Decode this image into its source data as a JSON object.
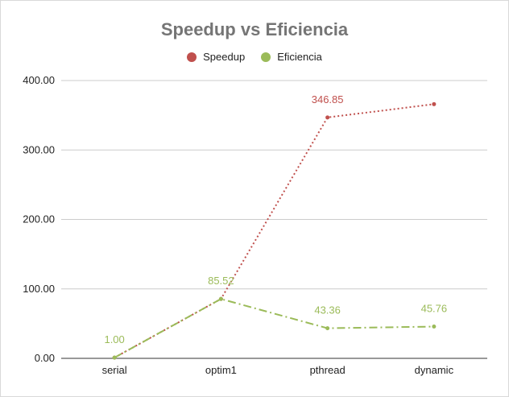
{
  "chart_data": {
    "type": "line",
    "title": "Speedup vs Eficiencia",
    "categories": [
      "serial",
      "optim1",
      "pthread",
      "dynamic"
    ],
    "series": [
      {
        "name": "Speedup",
        "values": [
          1.0,
          85.52,
          346.85,
          366.0
        ],
        "color": "#c0504d",
        "data_labels": [
          null,
          null,
          "346.85",
          null
        ]
      },
      {
        "name": "Eficiencia",
        "values": [
          1.0,
          85.52,
          43.36,
          45.76
        ],
        "color": "#9bbb59",
        "data_labels": [
          "1.00",
          "85.52",
          "43.36",
          "45.76"
        ]
      }
    ],
    "y_ticks": [
      "0.00",
      "100.00",
      "200.00",
      "300.00",
      "400.00"
    ],
    "ylim": [
      0,
      400
    ],
    "legend_position": "top",
    "grid": true
  }
}
